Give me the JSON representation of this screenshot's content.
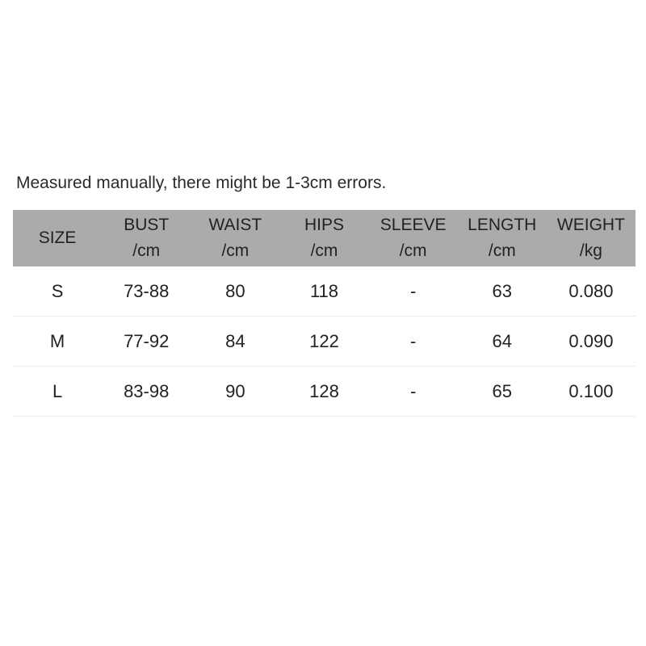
{
  "note": "Measured manually, there might be 1-3cm errors.",
  "headers": [
    {
      "name": "SIZE",
      "unit": ""
    },
    {
      "name": "BUST",
      "unit": "/cm"
    },
    {
      "name": "WAIST",
      "unit": "/cm"
    },
    {
      "name": "HIPS",
      "unit": "/cm"
    },
    {
      "name": "SLEEVE",
      "unit": "/cm"
    },
    {
      "name": "LENGTH",
      "unit": "/cm"
    },
    {
      "name": "WEIGHT",
      "unit": "/kg"
    }
  ],
  "rows": [
    [
      "S",
      "73-88",
      "80",
      "118",
      "-",
      "63",
      "0.080"
    ],
    [
      "M",
      "77-92",
      "84",
      "122",
      "-",
      "64",
      "0.090"
    ],
    [
      "L",
      "83-98",
      "90",
      "128",
      "-",
      "65",
      "0.100"
    ]
  ],
  "colors": {
    "header_bg": "#ababab"
  }
}
